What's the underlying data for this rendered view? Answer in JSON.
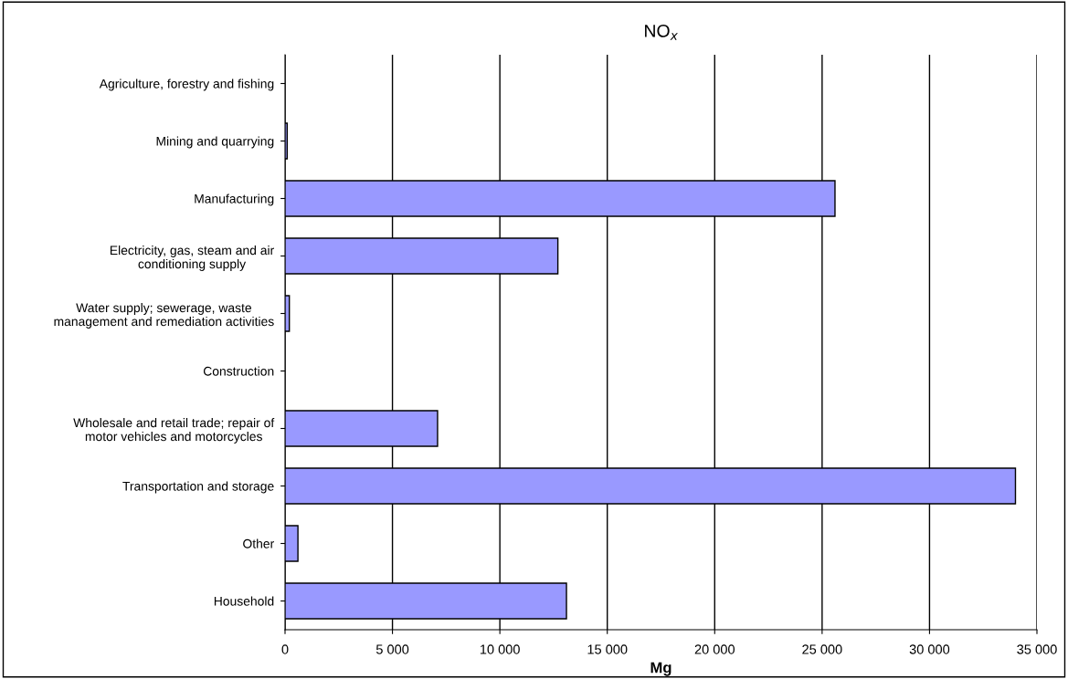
{
  "chart_data": {
    "type": "bar",
    "orientation": "horizontal",
    "title": "NO$_{x}$",
    "xlabel": "Mg",
    "categories": [
      "Agriculture, forestry and fishing",
      "Mining and quarrying",
      "Manufacturing",
      "Electricity, gas, steam and air\nconditioning supply",
      "Water supply; sewerage, waste\nmanagement and remediation activities",
      "Construction",
      "Wholesale and retail trade; repair of\nmotor vehicles and motorcycles",
      "Transportation and storage",
      "Other",
      "Household"
    ],
    "values": [
      0,
      100,
      25600,
      12700,
      200,
      0,
      7100,
      34000,
      600,
      13100
    ],
    "color": "#9999ff",
    "xlim": [
      0,
      35000
    ],
    "xticks": [
      0,
      {
        "value": 5000,
        "label": "5 000"
      },
      {
        "value": 10000,
        "label": "10 000"
      },
      {
        "value": 15000,
        "label": "15 000"
      },
      {
        "value": 20000,
        "label": "20 000"
      },
      {
        "value": 25000,
        "label": "25 000"
      },
      {
        "value": 30000,
        "label": "30 000"
      },
      {
        "value": 35000,
        "label": "35 000"
      }
    ],
    "grid": "x",
    "legend": false
  }
}
